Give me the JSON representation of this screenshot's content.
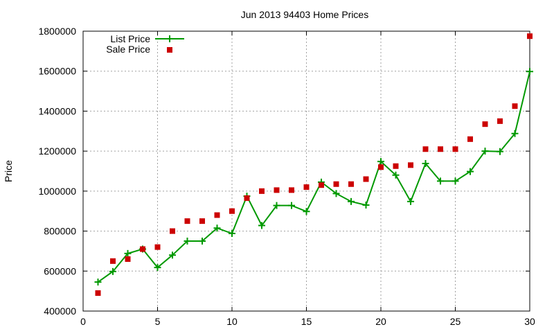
{
  "chart_data": {
    "type": "line",
    "title": "Jun 2013 94403 Home Prices",
    "xlabel": "",
    "ylabel": "Price",
    "xlim": [
      0,
      30
    ],
    "ylim": [
      400000,
      1800000
    ],
    "x_ticks": [
      0,
      5,
      10,
      15,
      20,
      25,
      30
    ],
    "y_ticks": [
      400000,
      600000,
      800000,
      1000000,
      1200000,
      1400000,
      1600000,
      1800000
    ],
    "grid": true,
    "legend_position": "top-left",
    "series": [
      {
        "name": "List Price",
        "style": "line-with-plus-markers",
        "color": "#009900",
        "x": [
          1,
          2,
          3,
          4,
          5,
          6,
          7,
          8,
          9,
          10,
          11,
          12,
          13,
          14,
          15,
          16,
          17,
          18,
          19,
          20,
          21,
          22,
          23,
          24,
          25,
          26,
          27,
          28,
          29,
          30
        ],
        "values": [
          545000,
          598000,
          688000,
          710000,
          618000,
          680000,
          750000,
          750000,
          815000,
          788000,
          975000,
          828000,
          928000,
          928000,
          898000,
          1045000,
          988000,
          948000,
          930000,
          1148000,
          1080000,
          948000,
          1138000,
          1050000,
          1050000,
          1098000,
          1200000,
          1198000,
          1288000,
          1598000
        ]
      },
      {
        "name": "Sale Price",
        "style": "square-markers",
        "color": "#cc0000",
        "x": [
          1,
          2,
          3,
          4,
          5,
          6,
          7,
          8,
          9,
          10,
          11,
          12,
          13,
          14,
          15,
          16,
          17,
          18,
          19,
          20,
          21,
          22,
          23,
          24,
          25,
          26,
          27,
          28,
          29,
          30
        ],
        "values": [
          490000,
          650000,
          660000,
          710000,
          720000,
          800000,
          850000,
          850000,
          880000,
          900000,
          965000,
          1000000,
          1005000,
          1005000,
          1020000,
          1030000,
          1035000,
          1035000,
          1060000,
          1120000,
          1125000,
          1130000,
          1210000,
          1210000,
          1210000,
          1260000,
          1335000,
          1350000,
          1425000,
          1775000
        ]
      }
    ]
  }
}
